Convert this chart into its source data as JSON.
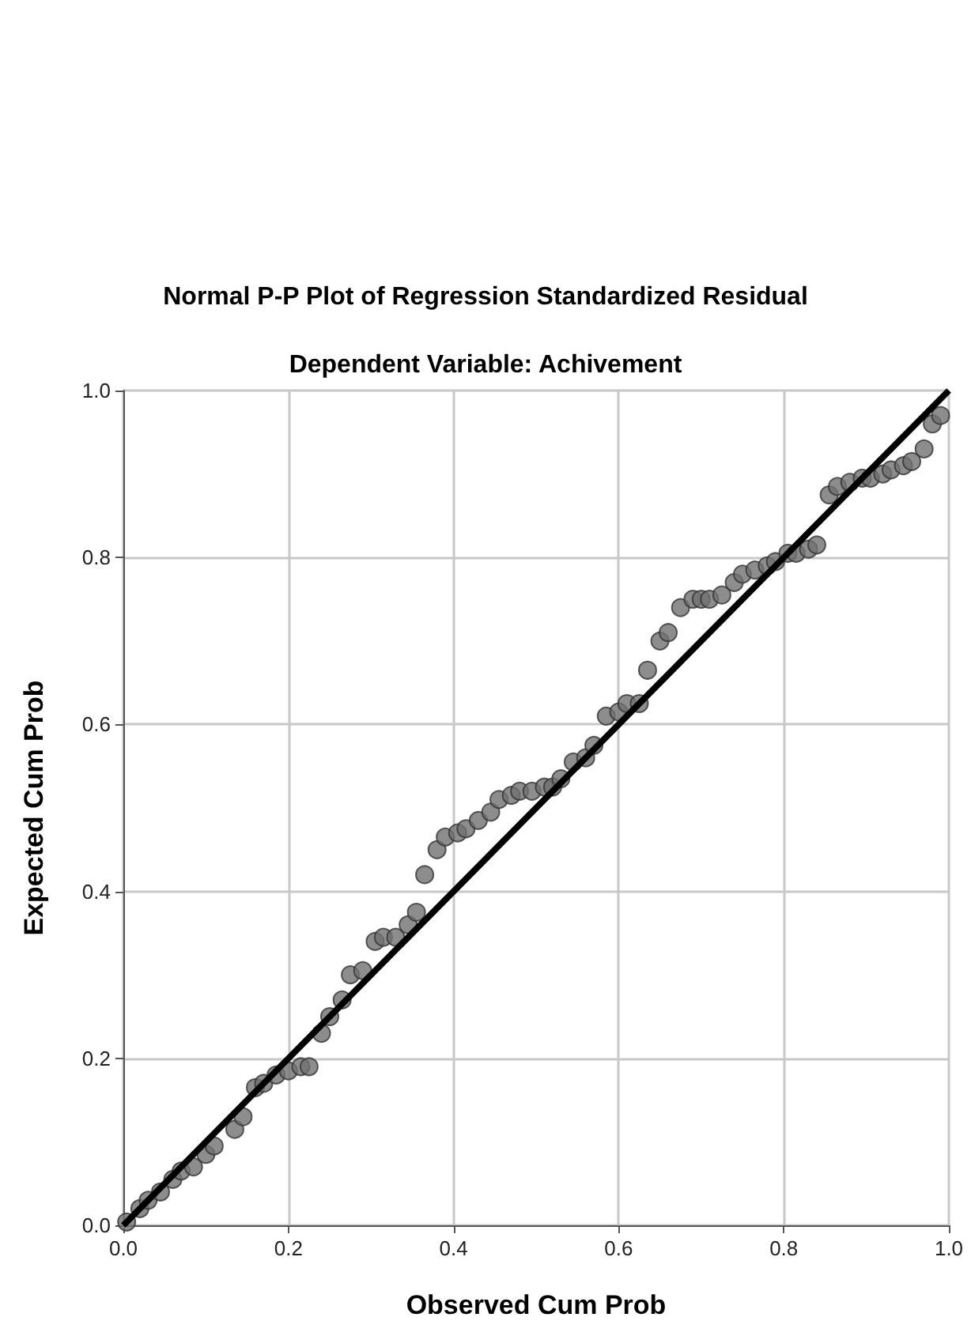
{
  "chart_data": {
    "type": "scatter",
    "title": "Normal P-P Plot of Regression Standardized Residual",
    "subtitle": "Dependent Variable: Achivement",
    "xlabel": "Observed Cum Prob",
    "ylabel": "Expected Cum Prob",
    "xlim": [
      0,
      1
    ],
    "ylim": [
      0,
      1
    ],
    "xticks": [
      {
        "value": 0,
        "label": "0.0"
      },
      {
        "value": 0.2,
        "label": "0.2"
      },
      {
        "value": 0.4,
        "label": "0.4"
      },
      {
        "value": 0.6,
        "label": "0.6"
      },
      {
        "value": 0.8,
        "label": "0.8"
      },
      {
        "value": 1,
        "label": "1.0"
      }
    ],
    "yticks": [
      {
        "value": 0,
        "label": "0.0"
      },
      {
        "value": 0.2,
        "label": "0.2"
      },
      {
        "value": 0.4,
        "label": "0.4"
      },
      {
        "value": 0.6,
        "label": "0.6"
      },
      {
        "value": 0.8,
        "label": "0.8"
      },
      {
        "value": 1,
        "label": "1.0"
      }
    ],
    "grid": true,
    "series": [
      {
        "color": "#707070",
        "marker": "circle",
        "x": [
          0.004,
          0.02,
          0.03,
          0.045,
          0.06,
          0.07,
          0.085,
          0.1,
          0.11,
          0.135,
          0.145,
          0.16,
          0.17,
          0.185,
          0.2,
          0.215,
          0.225,
          0.24,
          0.25,
          0.265,
          0.275,
          0.29,
          0.305,
          0.315,
          0.33,
          0.345,
          0.355,
          0.365,
          0.38,
          0.39,
          0.405,
          0.415,
          0.43,
          0.445,
          0.455,
          0.47,
          0.48,
          0.495,
          0.51,
          0.52,
          0.53,
          0.545,
          0.56,
          0.57,
          0.585,
          0.6,
          0.61,
          0.625,
          0.635,
          0.65,
          0.66,
          0.675,
          0.69,
          0.7,
          0.71,
          0.725,
          0.74,
          0.75,
          0.765,
          0.78,
          0.79,
          0.805,
          0.815,
          0.83,
          0.84,
          0.855,
          0.865,
          0.88,
          0.895,
          0.905,
          0.92,
          0.93,
          0.945,
          0.955,
          0.97,
          0.98,
          0.99
        ],
        "values": [
          0.004,
          0.02,
          0.03,
          0.04,
          0.055,
          0.065,
          0.07,
          0.085,
          0.095,
          0.115,
          0.13,
          0.165,
          0.17,
          0.18,
          0.185,
          0.19,
          0.19,
          0.23,
          0.25,
          0.27,
          0.3,
          0.305,
          0.34,
          0.345,
          0.345,
          0.36,
          0.375,
          0.42,
          0.45,
          0.465,
          0.47,
          0.475,
          0.485,
          0.495,
          0.51,
          0.515,
          0.52,
          0.52,
          0.525,
          0.525,
          0.535,
          0.555,
          0.56,
          0.575,
          0.61,
          0.615,
          0.625,
          0.625,
          0.665,
          0.7,
          0.71,
          0.74,
          0.75,
          0.75,
          0.75,
          0.755,
          0.77,
          0.78,
          0.785,
          0.79,
          0.795,
          0.805,
          0.805,
          0.81,
          0.815,
          0.875,
          0.885,
          0.89,
          0.895,
          0.895,
          0.9,
          0.905,
          0.91,
          0.915,
          0.93,
          0.96,
          0.97
        ]
      },
      {
        "type": "line",
        "color": "#000000",
        "marker": "none",
        "line_style": "solid",
        "x": [
          0,
          1
        ],
        "values": [
          0,
          1
        ]
      }
    ]
  }
}
